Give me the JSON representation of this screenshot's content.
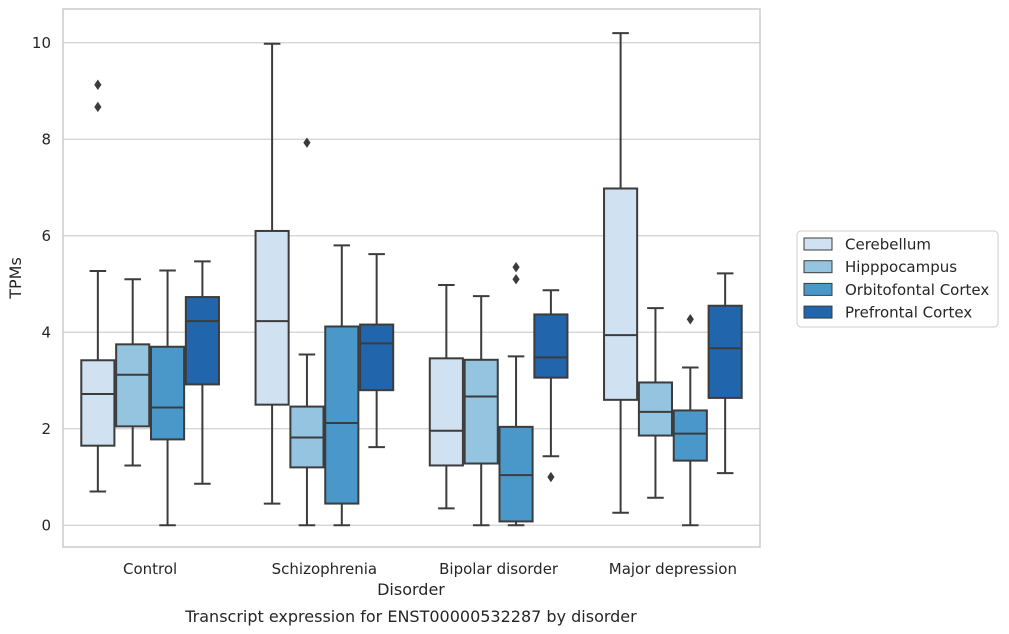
{
  "chart_data": {
    "type": "box",
    "caption": "Transcript expression for ENST00000532287 by disorder",
    "xlabel": "Disorder",
    "ylabel": "TPMs",
    "ylim": [
      -0.45,
      10.7
    ],
    "yticks": [
      0,
      2,
      4,
      6,
      8,
      10
    ],
    "grid": true,
    "legend_position": "right",
    "categories": [
      "Control",
      "Schizophrenia",
      "Bipolar disorder",
      "Major depression"
    ],
    "series": [
      {
        "name": "Cerebellum",
        "color": "#d0e1f2",
        "boxes": [
          {
            "whisker_low": 0.7,
            "q1": 1.65,
            "median": 2.72,
            "q3": 3.42,
            "whisker_high": 5.27,
            "outliers": [
              8.67,
              9.13
            ]
          },
          {
            "whisker_low": 0.45,
            "q1": 2.5,
            "median": 4.23,
            "q3": 6.1,
            "whisker_high": 9.98,
            "outliers": []
          },
          {
            "whisker_low": 0.35,
            "q1": 1.24,
            "median": 1.96,
            "q3": 3.46,
            "whisker_high": 4.98,
            "outliers": []
          },
          {
            "whisker_low": 0.26,
            "q1": 2.6,
            "median": 3.94,
            "q3": 6.98,
            "whisker_high": 10.2,
            "outliers": []
          }
        ]
      },
      {
        "name": "Hipppocampus",
        "color": "#94c4df",
        "boxes": [
          {
            "whisker_low": 1.24,
            "q1": 2.05,
            "median": 3.12,
            "q3": 3.75,
            "whisker_high": 5.1,
            "outliers": []
          },
          {
            "whisker_low": 0.0,
            "q1": 1.2,
            "median": 1.82,
            "q3": 2.46,
            "whisker_high": 3.54,
            "outliers": [
              7.93
            ]
          },
          {
            "whisker_low": 0.0,
            "q1": 1.28,
            "median": 2.67,
            "q3": 3.43,
            "whisker_high": 4.75,
            "outliers": []
          },
          {
            "whisker_low": 0.57,
            "q1": 1.86,
            "median": 2.35,
            "q3": 2.96,
            "whisker_high": 4.5,
            "outliers": []
          }
        ]
      },
      {
        "name": "Orbitofontal Cortex",
        "color": "#4a98c9",
        "boxes": [
          {
            "whisker_low": 0.0,
            "q1": 1.78,
            "median": 2.44,
            "q3": 3.7,
            "whisker_high": 5.28,
            "outliers": []
          },
          {
            "whisker_low": 0.0,
            "q1": 0.45,
            "median": 2.12,
            "q3": 4.12,
            "whisker_high": 5.8,
            "outliers": []
          },
          {
            "whisker_low": 0.0,
            "q1": 0.08,
            "median": 1.04,
            "q3": 2.04,
            "whisker_high": 3.5,
            "outliers": [
              5.1,
              5.35
            ]
          },
          {
            "whisker_low": 0.0,
            "q1": 1.34,
            "median": 1.9,
            "q3": 2.38,
            "whisker_high": 3.27,
            "outliers": [
              4.27
            ]
          }
        ]
      },
      {
        "name": "Prefrontal Cortex",
        "color": "#2166ac",
        "boxes": [
          {
            "whisker_low": 0.86,
            "q1": 2.92,
            "median": 4.23,
            "q3": 4.73,
            "whisker_high": 5.47,
            "outliers": []
          },
          {
            "whisker_low": 1.62,
            "q1": 2.8,
            "median": 3.77,
            "q3": 4.16,
            "whisker_high": 5.62,
            "outliers": []
          },
          {
            "whisker_low": 1.43,
            "q1": 3.06,
            "median": 3.48,
            "q3": 4.37,
            "whisker_high": 4.87,
            "outliers": [
              1.0
            ]
          },
          {
            "whisker_low": 1.08,
            "q1": 2.64,
            "median": 3.67,
            "q3": 4.55,
            "whisker_high": 5.22,
            "outliers": []
          }
        ]
      }
    ]
  }
}
